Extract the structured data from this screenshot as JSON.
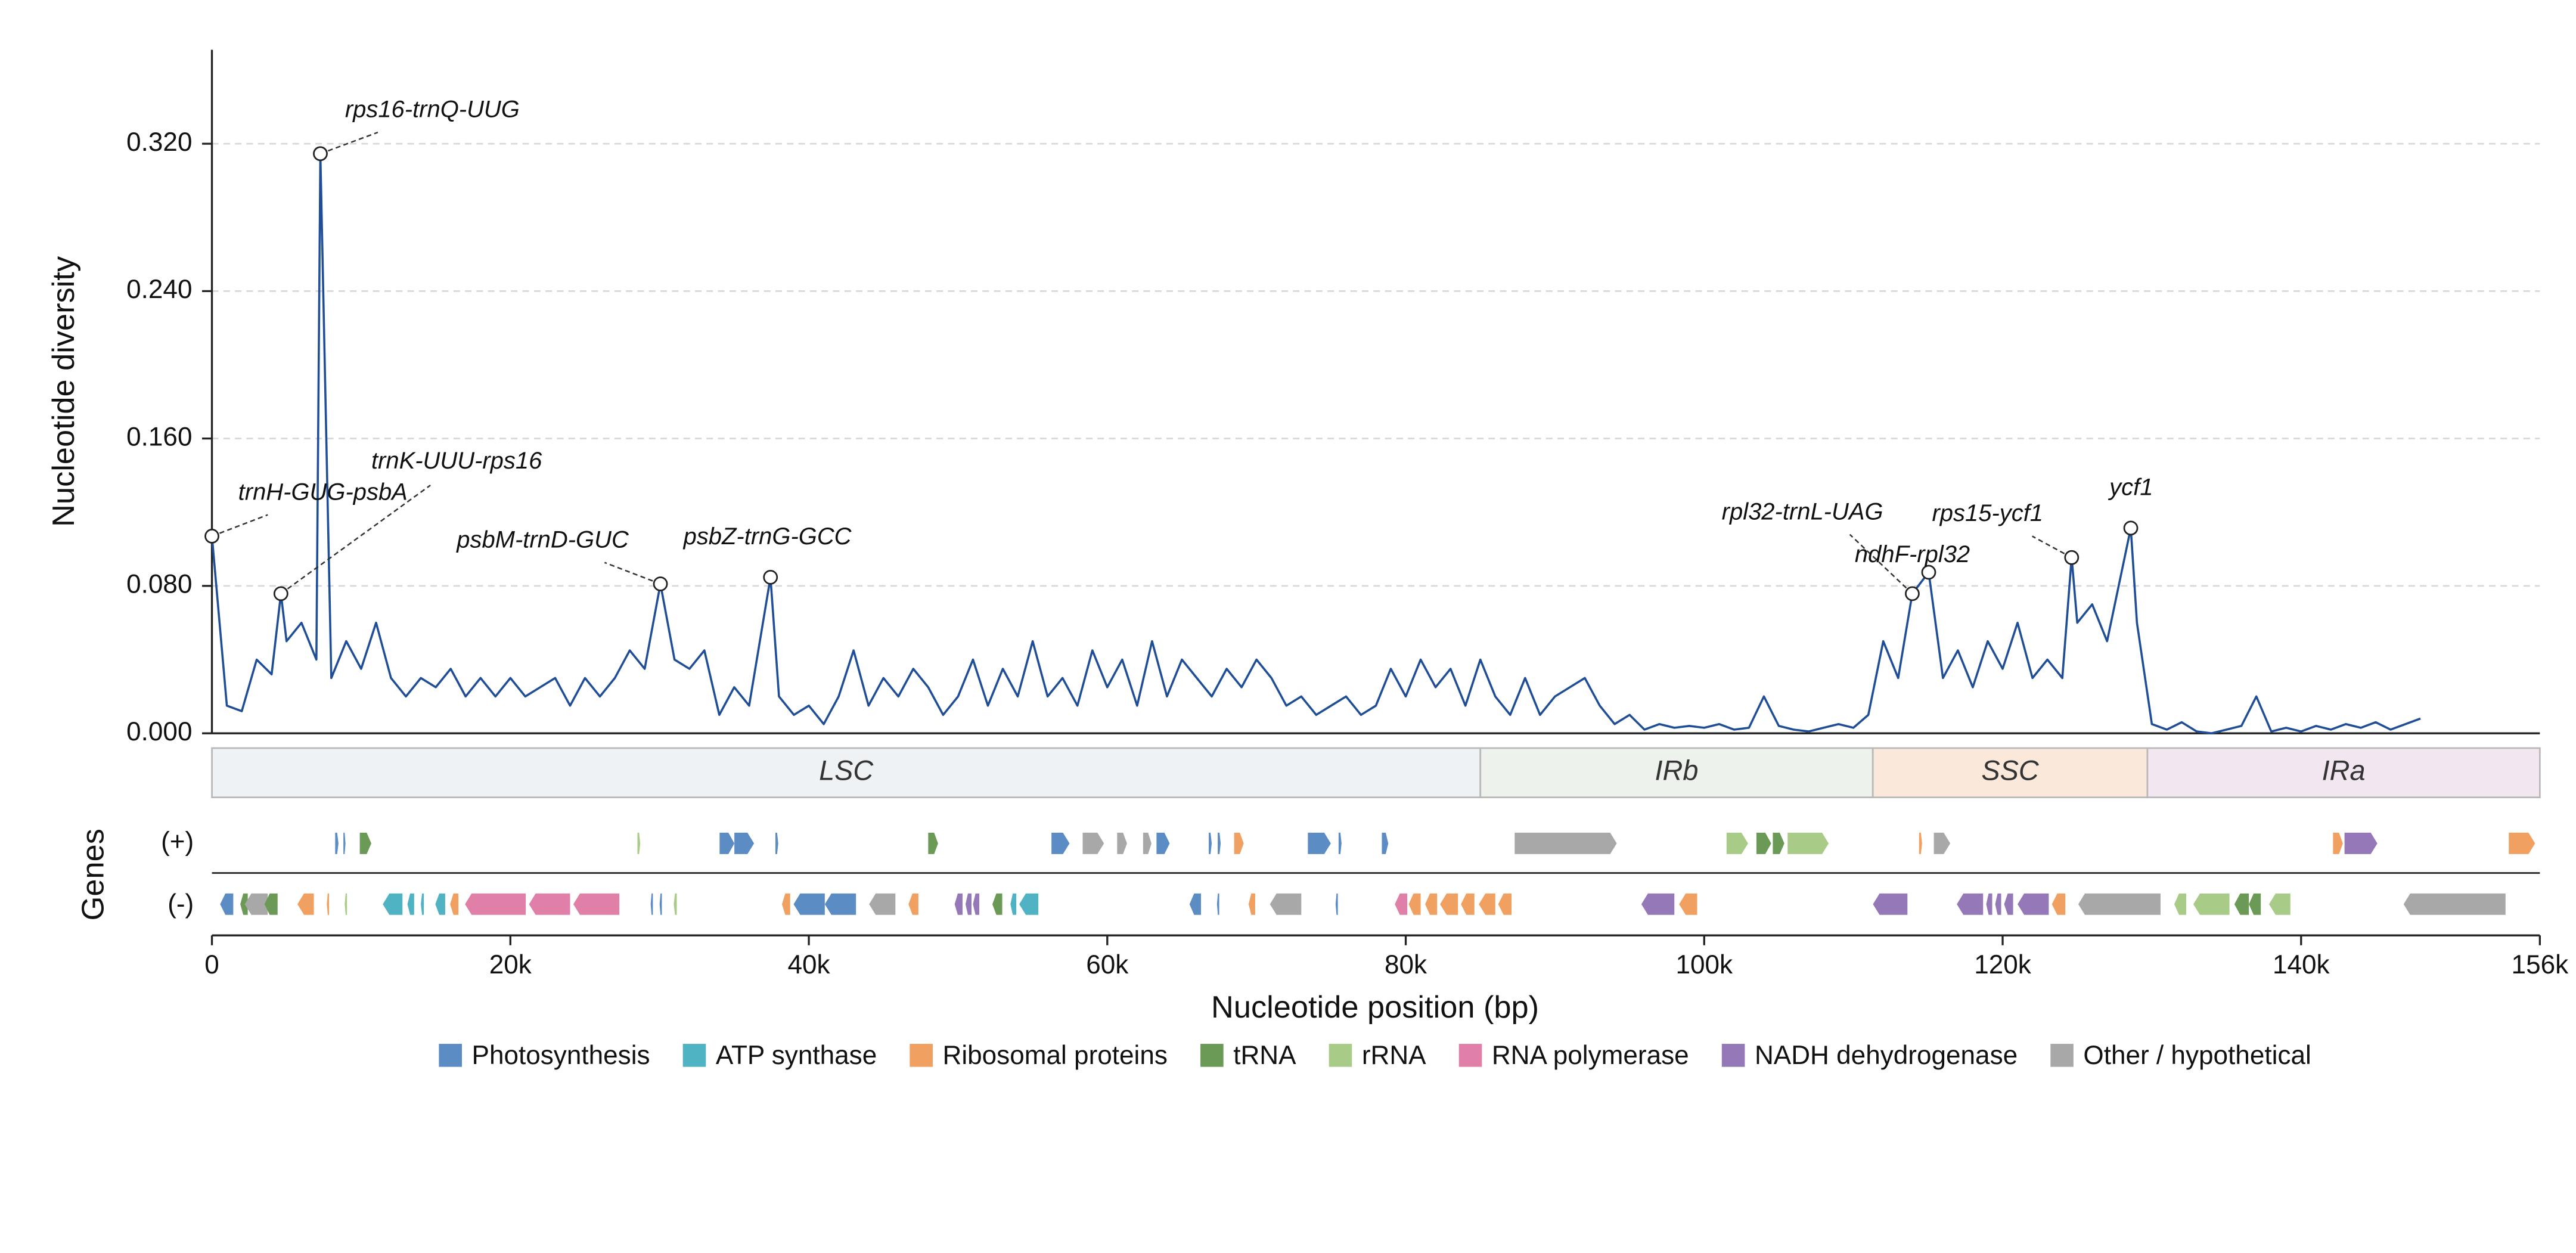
{
  "chart_data": {
    "type": "line",
    "ylabel": "Nucleotide diversity",
    "xlabel": "Nucleotide position (bp)",
    "genes_label": "Genes",
    "strand_labels": {
      "plus": "(+)",
      "minus": "(-)"
    },
    "color": "#1f4e96",
    "grid": true,
    "xlim": [
      0,
      156000
    ],
    "xticks": [
      0,
      {
        "value": 20000,
        "label": "20k"
      },
      {
        "value": 40000,
        "label": "40k"
      },
      {
        "value": 60000,
        "label": "60k"
      },
      {
        "value": 80000,
        "label": "80k"
      },
      {
        "value": 100000,
        "label": "100k"
      },
      {
        "value": 120000,
        "label": "120k"
      },
      {
        "value": 140000,
        "label": "140k"
      },
      {
        "value": 156000,
        "label": "156k"
      }
    ],
    "ylim": [
      0,
      0.371
    ],
    "yticks": [
      {
        "value": 0,
        "label": "0.000"
      },
      {
        "value": 0.08,
        "label": "0.080"
      },
      {
        "value": 0.16,
        "label": "0.160"
      },
      {
        "value": 0.24,
        "label": "0.240"
      },
      {
        "value": 0.32,
        "label": "0.320"
      }
    ],
    "x": [
      0,
      1000,
      2000,
      3000,
      4000,
      4624,
      5000,
      6000,
      7000,
      7266,
      8000,
      9000,
      10000,
      11000,
      12000,
      13000,
      14000,
      15000,
      16000,
      17000,
      18000,
      19000,
      20000,
      21000,
      22000,
      23000,
      24000,
      25000,
      26000,
      27000,
      28000,
      29000,
      30055,
      31000,
      32000,
      33000,
      34000,
      35000,
      36000,
      37430,
      38000,
      39000,
      40000,
      41000,
      42000,
      43000,
      44000,
      45000,
      46000,
      47000,
      48000,
      49000,
      50000,
      51000,
      52000,
      53000,
      54000,
      55000,
      56000,
      57000,
      58000,
      59000,
      60000,
      61000,
      62000,
      63000,
      64000,
      65000,
      66000,
      67000,
      68000,
      69000,
      70000,
      71000,
      72000,
      73000,
      74000,
      75000,
      76000,
      77000,
      78000,
      79000,
      80000,
      81000,
      82000,
      83000,
      84000,
      85000,
      86000,
      87000,
      88000,
      89000,
      90000,
      91000,
      92000,
      93000,
      94000,
      95000,
      96000,
      97000,
      98000,
      99000,
      100000,
      101000,
      102000,
      103000,
      104000,
      105000,
      106000,
      107000,
      108000,
      109000,
      110000,
      111000,
      112000,
      113000,
      113945,
      115045,
      116000,
      117000,
      118000,
      119000,
      120000,
      121000,
      122000,
      123000,
      124000,
      124624,
      125000,
      126000,
      127000,
      128587,
      129000,
      130000,
      131000,
      132000,
      133000,
      134000,
      135000,
      136000,
      137000,
      138000,
      139000,
      140000,
      141000,
      142000,
      143000,
      144000,
      145000,
      146000,
      147000,
      148000
    ],
    "values": [
      0.107,
      0.015,
      0.012,
      0.04,
      0.032,
      0.0758,
      0.05,
      0.06,
      0.04,
      0.3146,
      0.03,
      0.05,
      0.035,
      0.06,
      0.03,
      0.02,
      0.03,
      0.025,
      0.035,
      0.02,
      0.03,
      0.02,
      0.03,
      0.02,
      0.025,
      0.03,
      0.015,
      0.03,
      0.02,
      0.03,
      0.045,
      0.035,
      0.0811,
      0.04,
      0.035,
      0.045,
      0.01,
      0.025,
      0.015,
      0.0847,
      0.02,
      0.01,
      0.015,
      0.005,
      0.02,
      0.045,
      0.015,
      0.03,
      0.02,
      0.035,
      0.025,
      0.01,
      0.02,
      0.04,
      0.015,
      0.035,
      0.02,
      0.05,
      0.02,
      0.03,
      0.015,
      0.045,
      0.025,
      0.04,
      0.015,
      0.05,
      0.02,
      0.04,
      0.03,
      0.02,
      0.035,
      0.025,
      0.04,
      0.03,
      0.015,
      0.02,
      0.01,
      0.015,
      0.02,
      0.01,
      0.015,
      0.035,
      0.02,
      0.04,
      0.025,
      0.035,
      0.015,
      0.04,
      0.02,
      0.01,
      0.03,
      0.01,
      0.02,
      0.025,
      0.03,
      0.015,
      0.005,
      0.01,
      0.002,
      0.005,
      0.003,
      0.004,
      0.003,
      0.005,
      0.002,
      0.003,
      0.02,
      0.004,
      0.002,
      0.001,
      0.003,
      0.005,
      0.003,
      0.01,
      0.05,
      0.03,
      0.0758,
      0.0874,
      0.03,
      0.045,
      0.025,
      0.05,
      0.035,
      0.06,
      0.03,
      0.04,
      0.03,
      0.0954,
      0.06,
      0.07,
      0.05,
      0.1114,
      0.06,
      0.005,
      0.002,
      0.006,
      0.001,
      0,
      0.002,
      0.004,
      0.02,
      0.001,
      0.003,
      0.001,
      0.004,
      0.002,
      0.005,
      0.003,
      0.006,
      0.002,
      0.005,
      0.008
    ],
    "annotations": [
      {
        "label": "rps16-trnQ-UUG",
        "x": 7266,
        "y": 0.3146
      },
      {
        "label": "trnH-GUG-psbA",
        "x": 0,
        "y": 0.107
      },
      {
        "label": "trnK-UUU-rps16",
        "x": 4624,
        "y": 0.0758
      },
      {
        "label": "psbM-trnD-GUC",
        "x": 30055,
        "y": 0.0811
      },
      {
        "label": "psbZ-trnG-GCC",
        "x": 37430,
        "y": 0.0847
      },
      {
        "label": "rpl32-trnL-UAG",
        "x": 113945,
        "y": 0.0758
      },
      {
        "label": "ndhF-rpl32",
        "x": 115045,
        "y": 0.0874
      },
      {
        "label": "rps15-ycf1",
        "x": 124624,
        "y": 0.0954
      },
      {
        "label": "ycf1",
        "x": 128587,
        "y": 0.1114
      }
    ],
    "regions": [
      {
        "name": "LSC",
        "start": 0,
        "end": 85000,
        "color": "#eef2f5"
      },
      {
        "name": "IRb",
        "start": 85000,
        "end": 111300,
        "color": "#edf3ec"
      },
      {
        "name": "SSC",
        "start": 111300,
        "end": 129700,
        "color": "#fae8da"
      },
      {
        "name": "IRa",
        "start": 129700,
        "end": 156000,
        "color": "#f2e6f1"
      }
    ],
    "gene_categories": [
      {
        "name": "Photosynthesis",
        "color": "#5b8cc4"
      },
      {
        "name": "ATP synthase",
        "color": "#4fb3c4"
      },
      {
        "name": "Ribosomal proteins",
        "color": "#f0a060"
      },
      {
        "name": "tRNA",
        "color": "#6a9a55"
      },
      {
        "name": "rRNA",
        "color": "#a8cc88"
      },
      {
        "name": "RNA polymerase",
        "color": "#e080a8"
      },
      {
        "name": "NADH dehydrogenase",
        "color": "#9478b8"
      },
      {
        "name": "Other / hypothetical",
        "color": "#a8a8a8"
      }
    ],
    "genes": {
      "plus": [
        {
          "start": 8258,
          "end": 8480,
          "category": 0
        },
        {
          "start": 8810,
          "end": 8950,
          "category": 0
        },
        {
          "start": 9909,
          "end": 10680,
          "category": 3
        },
        {
          "start": 28516,
          "end": 28700,
          "category": 4
        },
        {
          "start": 34020,
          "end": 35010,
          "category": 0
        },
        {
          "start": 35010,
          "end": 36330,
          "category": 0
        },
        {
          "start": 37760,
          "end": 37950,
          "category": 0
        },
        {
          "start": 48000,
          "end": 48660,
          "category": 3
        },
        {
          "start": 56260,
          "end": 57470,
          "category": 0
        },
        {
          "start": 58350,
          "end": 59780,
          "category": 7
        },
        {
          "start": 60660,
          "end": 61320,
          "category": 7
        },
        {
          "start": 62400,
          "end": 62960,
          "category": 7
        },
        {
          "start": 63300,
          "end": 64180,
          "category": 0
        },
        {
          "start": 66800,
          "end": 67000,
          "category": 0
        },
        {
          "start": 67400,
          "end": 67600,
          "category": 0
        },
        {
          "start": 68500,
          "end": 69140,
          "category": 2
        },
        {
          "start": 73440,
          "end": 74980,
          "category": 0
        },
        {
          "start": 75500,
          "end": 75700,
          "category": 0
        },
        {
          "start": 78400,
          "end": 78830,
          "category": 0
        },
        {
          "start": 87300,
          "end": 94140,
          "category": 7
        },
        {
          "start": 101500,
          "end": 102940,
          "category": 4
        },
        {
          "start": 103500,
          "end": 104490,
          "category": 3
        },
        {
          "start": 104600,
          "end": 105370,
          "category": 3
        },
        {
          "start": 105590,
          "end": 108340,
          "category": 4
        },
        {
          "start": 114400,
          "end": 114600,
          "category": 2
        },
        {
          "start": 115390,
          "end": 116490,
          "category": 7
        },
        {
          "start": 142140,
          "end": 142800,
          "category": 2
        },
        {
          "start": 142910,
          "end": 145110,
          "category": 6
        },
        {
          "start": 153920,
          "end": 155680,
          "category": 2
        }
      ],
      "minus": [
        {
          "start": 550,
          "end": 1430,
          "category": 0
        },
        {
          "start": 1900,
          "end": 2400,
          "category": 3
        },
        {
          "start": 2200,
          "end": 3740,
          "category": 7
        },
        {
          "start": 3520,
          "end": 4400,
          "category": 3
        },
        {
          "start": 5730,
          "end": 6830,
          "category": 2
        },
        {
          "start": 7700,
          "end": 7850,
          "category": 2
        },
        {
          "start": 8900,
          "end": 9050,
          "category": 4
        },
        {
          "start": 11450,
          "end": 12770,
          "category": 1
        },
        {
          "start": 13100,
          "end": 13550,
          "category": 1
        },
        {
          "start": 14000,
          "end": 14200,
          "category": 1
        },
        {
          "start": 14970,
          "end": 15630,
          "category": 1
        },
        {
          "start": 15960,
          "end": 16520,
          "category": 2
        },
        {
          "start": 16960,
          "end": 21030,
          "category": 5
        },
        {
          "start": 21250,
          "end": 24000,
          "category": 5
        },
        {
          "start": 24220,
          "end": 27300,
          "category": 5
        },
        {
          "start": 29400,
          "end": 29550,
          "category": 0
        },
        {
          "start": 30000,
          "end": 30150,
          "category": 0
        },
        {
          "start": 30950,
          "end": 31150,
          "category": 4
        },
        {
          "start": 38200,
          "end": 38750,
          "category": 2
        },
        {
          "start": 38980,
          "end": 41070,
          "category": 0
        },
        {
          "start": 41070,
          "end": 43160,
          "category": 0
        },
        {
          "start": 44040,
          "end": 45800,
          "category": 7
        },
        {
          "start": 46680,
          "end": 47340,
          "category": 2
        },
        {
          "start": 49770,
          "end": 50300,
          "category": 6
        },
        {
          "start": 50500,
          "end": 50900,
          "category": 6
        },
        {
          "start": 51000,
          "end": 51420,
          "category": 6
        },
        {
          "start": 52300,
          "end": 52960,
          "category": 3
        },
        {
          "start": 53510,
          "end": 53900,
          "category": 1
        },
        {
          "start": 54100,
          "end": 55380,
          "category": 1
        },
        {
          "start": 65510,
          "end": 66280,
          "category": 0
        },
        {
          "start": 67350,
          "end": 67500,
          "category": 0
        },
        {
          "start": 69470,
          "end": 69910,
          "category": 2
        },
        {
          "start": 70900,
          "end": 73000,
          "category": 7
        },
        {
          "start": 75300,
          "end": 75450,
          "category": 0
        },
        {
          "start": 79270,
          "end": 80100,
          "category": 5
        },
        {
          "start": 80200,
          "end": 81000,
          "category": 2
        },
        {
          "start": 81300,
          "end": 82100,
          "category": 2
        },
        {
          "start": 82300,
          "end": 83500,
          "category": 2
        },
        {
          "start": 83700,
          "end": 84600,
          "category": 2
        },
        {
          "start": 84900,
          "end": 86000,
          "category": 2
        },
        {
          "start": 86200,
          "end": 87090,
          "category": 2
        },
        {
          "start": 95790,
          "end": 98000,
          "category": 6
        },
        {
          "start": 98320,
          "end": 99530,
          "category": 2
        },
        {
          "start": 111310,
          "end": 113620,
          "category": 6
        },
        {
          "start": 116930,
          "end": 118690,
          "category": 6
        },
        {
          "start": 118900,
          "end": 119300,
          "category": 6
        },
        {
          "start": 119500,
          "end": 119900,
          "category": 6
        },
        {
          "start": 120100,
          "end": 120700,
          "category": 6
        },
        {
          "start": 121000,
          "end": 123090,
          "category": 6
        },
        {
          "start": 123300,
          "end": 124200,
          "category": 2
        },
        {
          "start": 125070,
          "end": 130580,
          "category": 7
        },
        {
          "start": 131500,
          "end": 132300,
          "category": 4
        },
        {
          "start": 132780,
          "end": 135200,
          "category": 4
        },
        {
          "start": 135530,
          "end": 136500,
          "category": 3
        },
        {
          "start": 136500,
          "end": 137300,
          "category": 3
        },
        {
          "start": 137850,
          "end": 139280,
          "category": 4
        },
        {
          "start": 146870,
          "end": 153700,
          "category": 7
        }
      ]
    }
  }
}
